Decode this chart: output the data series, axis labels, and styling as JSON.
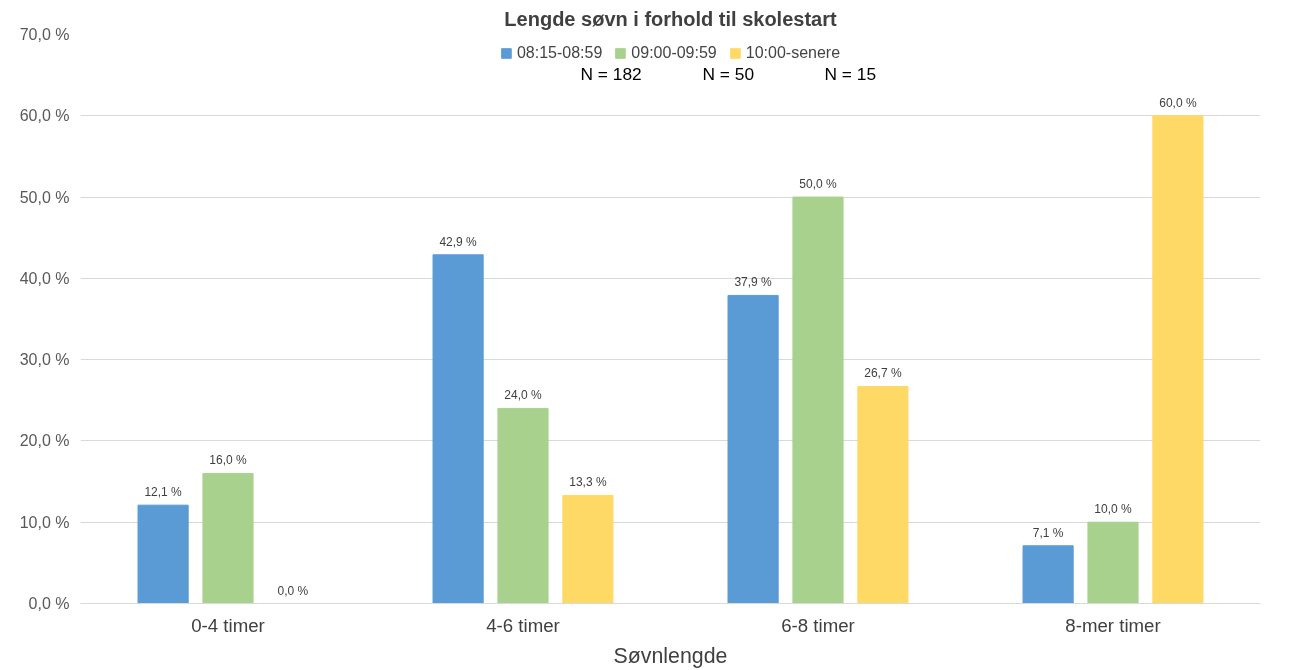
{
  "chart_data": {
    "type": "bar",
    "title": "Lengde søvn i forhold til skolestart",
    "xlabel": "Søvnlengde",
    "categories": [
      "0-4 timer",
      "4-6 timer",
      "6-8 timer",
      "8-mer timer"
    ],
    "series": [
      {
        "name": "08:15-08:59",
        "color": "#5b9bd5",
        "values": [
          12.1,
          42.9,
          37.9,
          7.1
        ],
        "value_labels": [
          "12,1 %",
          "42,9 %",
          "37,9 %",
          "7,1 %"
        ]
      },
      {
        "name": "09:00-09:59",
        "color": "#a9d18e",
        "values": [
          16.0,
          24.0,
          50.0,
          10.0
        ],
        "value_labels": [
          "16,0 %",
          "24,0 %",
          "50,0 %",
          "10,0 %"
        ]
      },
      {
        "name": "10:00-senere",
        "color": "#ffd966",
        "values": [
          0.0,
          13.3,
          26.7,
          60.0
        ],
        "value_labels": [
          "0,0 %",
          "13,3 %",
          "26,7 %",
          "60,0 %"
        ]
      }
    ],
    "ylim": [
      0,
      70
    ],
    "yticks": [
      {
        "value": 0,
        "label": "0,0 %"
      },
      {
        "value": 10,
        "label": "10,0 %"
      },
      {
        "value": 20,
        "label": "20,0 %"
      },
      {
        "value": 30,
        "label": "30,0 %"
      },
      {
        "value": 40,
        "label": "40,0 %"
      },
      {
        "value": 50,
        "label": "50,0 %"
      },
      {
        "value": 60,
        "label": "60,0 %"
      },
      {
        "value": 70,
        "label": "70,0 %"
      }
    ],
    "grid": "y",
    "legend": "top",
    "annotations": [
      "N = 182",
      "N = 50",
      "N = 15"
    ]
  }
}
